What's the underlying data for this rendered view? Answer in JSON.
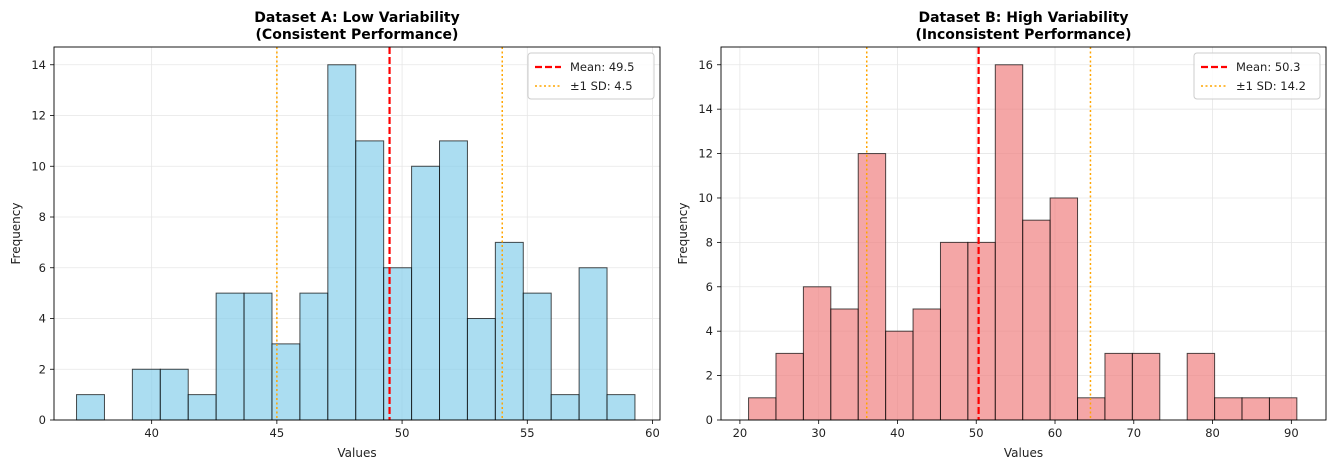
{
  "chart_data": [
    {
      "type": "bar",
      "title_line1": "Dataset A: Low Variability",
      "title_line2": "(Consistent Performance)",
      "xlabel": "Values",
      "ylabel": "Frequency",
      "xlim": [
        36.1,
        60.3
      ],
      "ylim": [
        0,
        14.7
      ],
      "xticks": [
        40,
        45,
        50,
        55,
        60
      ],
      "yticks": [
        0,
        2,
        4,
        6,
        8,
        10,
        12,
        14
      ],
      "bin_start": 37.0,
      "bin_width": 1.115,
      "counts": [
        1,
        0,
        2,
        2,
        1,
        5,
        5,
        3,
        5,
        14,
        11,
        6,
        10,
        11,
        4,
        7,
        5,
        1,
        6,
        1
      ],
      "bar_color": "#87CEEB",
      "mean": 49.5,
      "sd": 4.5,
      "mean_label": "Mean: 49.5",
      "sd_label": "±1 SD: 4.5",
      "mean_color": "#ff0000",
      "sd_color": "#FFA500",
      "legend_position": "top-right",
      "grid": true
    },
    {
      "type": "bar",
      "title_line1": "Dataset B: High Variability",
      "title_line2": "(Inconsistent Performance)",
      "xlabel": "Values",
      "ylabel": "Frequency",
      "xlim": [
        17.6,
        94.4
      ],
      "ylim": [
        0,
        16.8
      ],
      "xticks": [
        20,
        30,
        40,
        50,
        60,
        70,
        80,
        90
      ],
      "yticks": [
        0,
        2,
        4,
        6,
        8,
        10,
        12,
        14,
        16
      ],
      "bin_start": 21.1,
      "bin_width": 3.48,
      "counts": [
        1,
        3,
        6,
        5,
        12,
        4,
        5,
        8,
        8,
        16,
        9,
        10,
        1,
        3,
        3,
        0,
        3,
        1,
        1,
        1
      ],
      "bar_color": "#F08080",
      "mean": 50.3,
      "sd": 14.2,
      "mean_label": "Mean: 50.3",
      "sd_label": "±1 SD: 14.2",
      "mean_color": "#ff0000",
      "sd_color": "#FFA500",
      "legend_position": "top-right",
      "grid": true
    }
  ]
}
